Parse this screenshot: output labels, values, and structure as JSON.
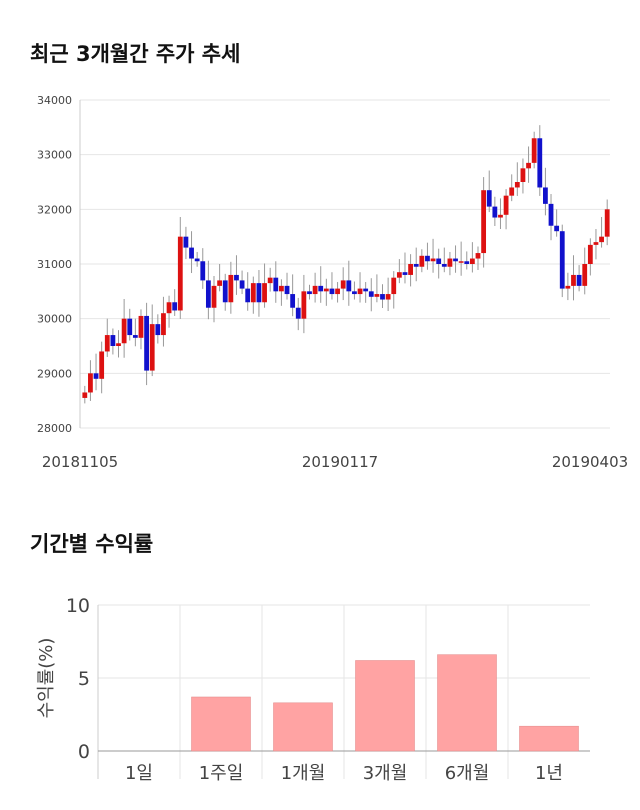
{
  "sections": {
    "price_title": "최근 3개월간 주가 추세",
    "return_title": "기간별 수익률"
  },
  "chart_data": [
    {
      "type": "candlestick",
      "title": "최근 3개월간 주가 추세",
      "ylim": [
        28000,
        34000
      ],
      "y_ticks": [
        "28000",
        "29000",
        "30000",
        "31000",
        "32000",
        "33000",
        "34000"
      ],
      "x_ticks": [
        "20181105",
        "20190117",
        "20190403"
      ],
      "colors": {
        "up": "#dd1111",
        "down": "#1111cc",
        "grid": "#e6e6e6"
      },
      "closes": [
        28650,
        29000,
        28900,
        29400,
        29700,
        29500,
        29550,
        30000,
        29700,
        29650,
        30050,
        29050,
        29900,
        29700,
        30100,
        30300,
        30150,
        31500,
        31300,
        31100,
        31050,
        30700,
        30200,
        30600,
        30700,
        30300,
        30800,
        30700,
        30550,
        30300,
        30650,
        30300,
        30650,
        30750,
        30500,
        30600,
        30450,
        30200,
        30000,
        30500,
        30450,
        30600,
        30500,
        30550,
        30450,
        30550,
        30700,
        30500,
        30450,
        30550,
        30500,
        30400,
        30450,
        30350,
        30450,
        30750,
        30850,
        30800,
        31000,
        30950,
        31150,
        31050,
        31100,
        31000,
        30950,
        31100,
        31050,
        31050,
        31000,
        31100,
        31200,
        32350,
        32050,
        31850,
        31900,
        32250,
        32400,
        32500,
        32750,
        32850,
        33300,
        32400,
        32100,
        31700,
        31600,
        30550,
        30600,
        30800,
        30600,
        31000,
        31350,
        31400,
        31500,
        32000
      ]
    },
    {
      "type": "bar",
      "title": "기간별 수익률",
      "categories": [
        "1일",
        "1주일",
        "1개월",
        "3개월",
        "6개월",
        "1년"
      ],
      "values": [
        0,
        3.7,
        3.3,
        6.2,
        6.6,
        1.7
      ],
      "ylabel": "수익률(%)",
      "ylim": [
        0,
        10
      ],
      "y_ticks": [
        "0",
        "5",
        "10"
      ],
      "colors": {
        "bar": "#ffa3a3",
        "bar_edge": "#e08888",
        "grid": "#e6e6e6"
      }
    }
  ]
}
